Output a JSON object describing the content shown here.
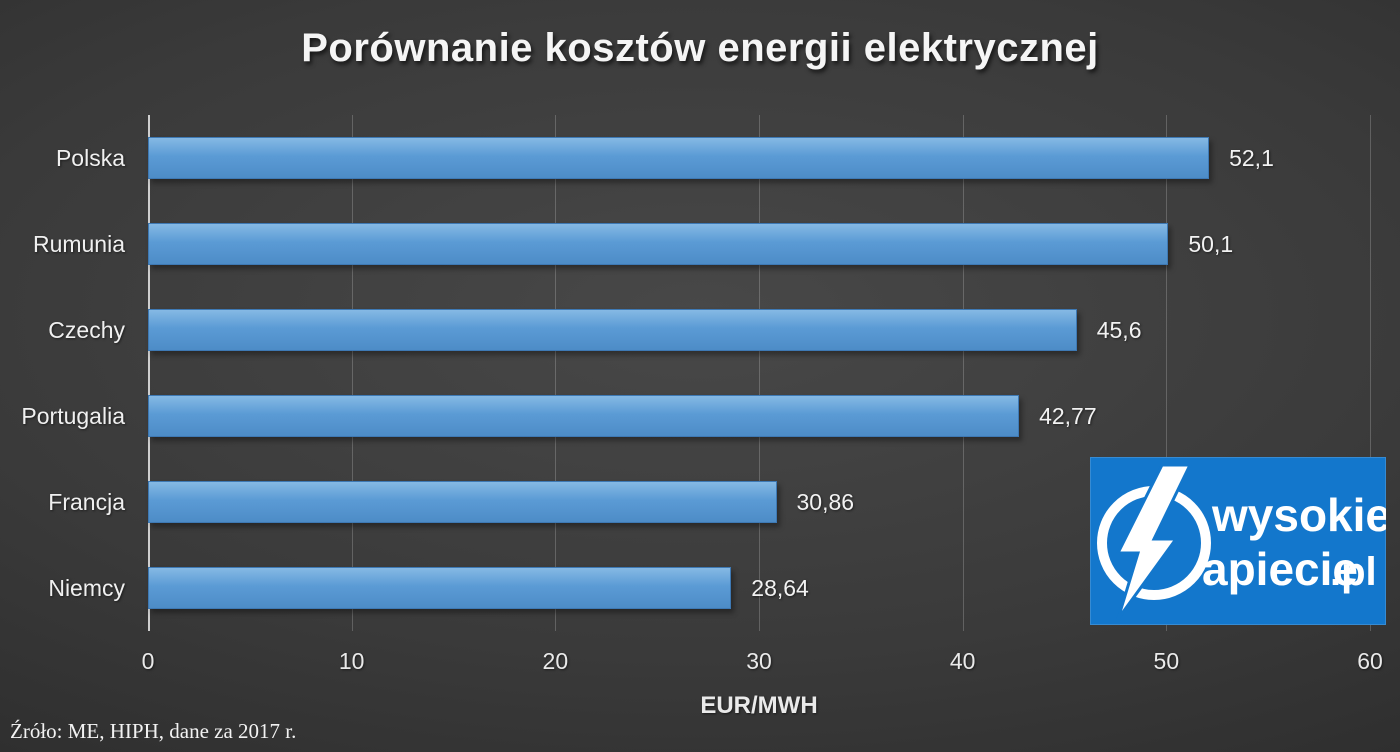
{
  "title": "Porównanie kosztów energii elektrycznej",
  "source": "Źróło: ME, HIPH, dane za 2017 r.",
  "logo": {
    "line1": "wysokie",
    "line2": "apiecie",
    "suffix": ".pl",
    "bg_color": "#1377cc",
    "icon": "lightning-bolt-n-in-circle"
  },
  "chart_data": {
    "type": "bar",
    "orientation": "horizontal",
    "title": "Porównanie kosztów energii elektrycznej",
    "categories": [
      "Polska",
      "Rumunia",
      "Czechy",
      "Portugalia",
      "Francja",
      "Niemcy"
    ],
    "values": [
      52.1,
      50.1,
      45.6,
      42.77,
      30.86,
      28.64
    ],
    "value_labels": [
      "52,1",
      "50,1",
      "45,6",
      "42,77",
      "30,86",
      "28,64"
    ],
    "xlabel": "EUR/MWH",
    "ylabel": "",
    "xlim": [
      0,
      60
    ],
    "x_ticks": [
      0,
      10,
      20,
      30,
      40,
      50,
      60
    ],
    "bar_color": "#5b9bd5",
    "grid": true,
    "legend": false
  }
}
